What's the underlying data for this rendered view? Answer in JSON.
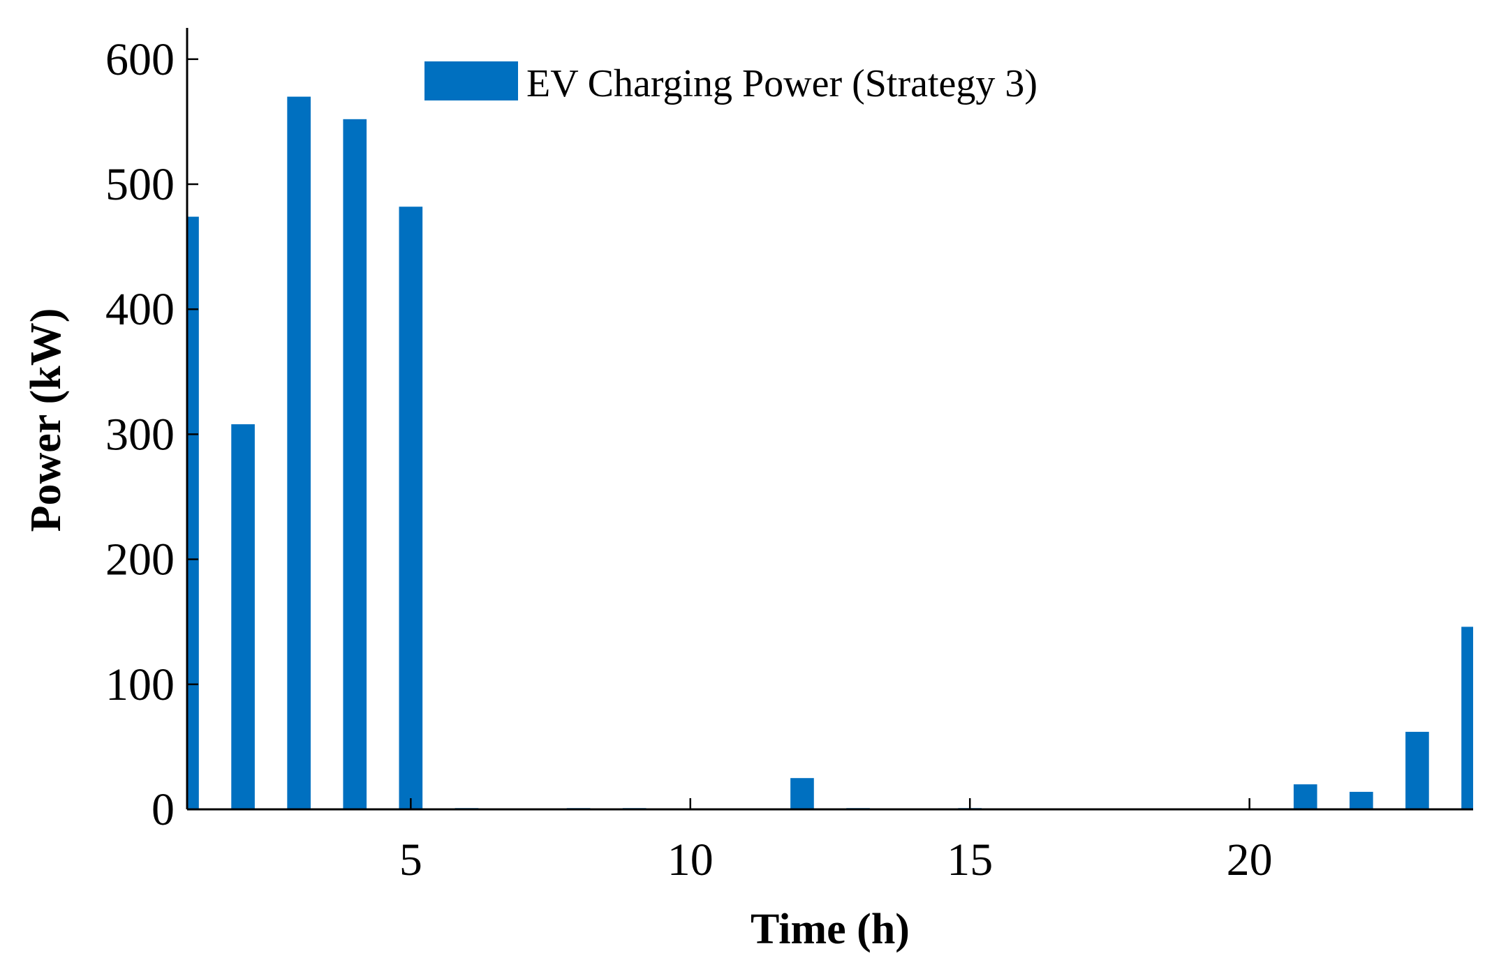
{
  "chart_data": {
    "type": "bar",
    "x": [
      1,
      2,
      3,
      4,
      5,
      6,
      7,
      8,
      9,
      10,
      11,
      12,
      13,
      14,
      15,
      16,
      17,
      18,
      19,
      20,
      21,
      22,
      23,
      24
    ],
    "series": [
      {
        "name": "EV Charging Power (Strategy 3)",
        "values": [
          474,
          308,
          570,
          552,
          482,
          1,
          0,
          1,
          1,
          0,
          0,
          25,
          1,
          0,
          1,
          0,
          0,
          0,
          0,
          0,
          20,
          14,
          62,
          146
        ],
        "color": "#0070C0"
      }
    ],
    "xlabel": "Time (h)",
    "ylabel": "Power (kW)",
    "xlim": [
      1,
      24
    ],
    "ylim": [
      0,
      625
    ],
    "xticks": [
      5,
      10,
      15,
      20
    ],
    "yticks": [
      0,
      100,
      200,
      300,
      400,
      500,
      600
    ],
    "grid": false,
    "legend_position": "top"
  }
}
